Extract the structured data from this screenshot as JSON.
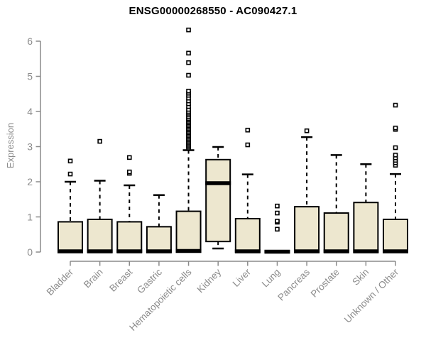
{
  "chart_data": {
    "type": "boxplot",
    "title": "ENSG00000268550 - AC090427.1",
    "ylabel": "Expression",
    "xlabel": "",
    "ylim": [
      0,
      6
    ],
    "yticks": [
      0,
      1,
      2,
      3,
      4,
      5,
      6
    ],
    "grid": false,
    "legend_position": "none",
    "style": {
      "box_fill": "#ede7cf",
      "box_stroke": "#000000",
      "median_color": "#000000",
      "whisker_color": "#000000",
      "outlier_stroke": "#000000",
      "axis_color": "#8b8b8b",
      "tick_label_color": "#8b8b8b",
      "title_color": "#000000",
      "background": "#ffffff"
    },
    "categories": [
      "Bladder",
      "Brain",
      "Breast",
      "Gastric",
      "Hematopoietic cells",
      "Kidney",
      "Liver",
      "Lung",
      "Pancreas",
      "Prostate",
      "Skin",
      "Unknown / Other"
    ],
    "series": [
      {
        "category": "Bladder",
        "whisker_low": 0,
        "q1": 0,
        "median": 0.02,
        "q3": 0.86,
        "whisker_high": 2.0,
        "outliers": [
          2.22,
          2.59
        ]
      },
      {
        "category": "Brain",
        "whisker_low": 0,
        "q1": 0,
        "median": 0.02,
        "q3": 0.93,
        "whisker_high": 2.03,
        "outliers": [
          3.15
        ]
      },
      {
        "category": "Breast",
        "whisker_low": 0,
        "q1": 0,
        "median": 0.02,
        "q3": 0.86,
        "whisker_high": 1.9,
        "outliers": [
          2.24,
          2.28,
          2.69
        ]
      },
      {
        "category": "Gastric",
        "whisker_low": 0,
        "q1": 0,
        "median": 0.02,
        "q3": 0.72,
        "whisker_high": 1.62,
        "outliers": []
      },
      {
        "category": "Hematopoietic cells",
        "whisker_low": 0,
        "q1": 0,
        "median": 0.03,
        "q3": 1.16,
        "whisker_high": 2.9,
        "outliers": [
          2.96,
          3.0,
          3.04,
          3.08,
          3.12,
          3.16,
          3.2,
          3.24,
          3.28,
          3.32,
          3.36,
          3.4,
          3.44,
          3.48,
          3.52,
          3.56,
          3.6,
          3.64,
          3.68,
          3.72,
          3.76,
          3.8,
          3.85,
          3.9,
          3.95,
          4.0,
          4.06,
          4.14,
          4.22,
          4.3,
          4.38,
          4.46,
          4.52,
          4.58,
          5.03,
          5.39,
          5.66,
          6.32
        ]
      },
      {
        "category": "Kidney",
        "whisker_low": 0.1,
        "q1": 0.3,
        "median": 1.96,
        "q3": 2.63,
        "whisker_high": 2.99,
        "outliers": []
      },
      {
        "category": "Liver",
        "whisker_low": 0,
        "q1": 0,
        "median": 0.02,
        "q3": 0.95,
        "whisker_high": 2.21,
        "outliers": [
          3.05,
          3.47
        ]
      },
      {
        "category": "Lung",
        "whisker_low": 0,
        "q1": 0,
        "median": 0.01,
        "q3": 0.02,
        "whisker_high": 0.02,
        "outliers": [
          0.65,
          0.85,
          0.88,
          1.11,
          1.31
        ]
      },
      {
        "category": "Pancreas",
        "whisker_low": 0,
        "q1": 0,
        "median": 0.02,
        "q3": 1.29,
        "whisker_high": 3.27,
        "outliers": [
          3.45
        ]
      },
      {
        "category": "Prostate",
        "whisker_low": 0,
        "q1": 0,
        "median": 0.02,
        "q3": 1.11,
        "whisker_high": 2.76,
        "outliers": []
      },
      {
        "category": "Skin",
        "whisker_low": 0,
        "q1": 0,
        "median": 0.02,
        "q3": 1.41,
        "whisker_high": 2.5,
        "outliers": []
      },
      {
        "category": "Unknown / Other",
        "whisker_low": 0,
        "q1": 0,
        "median": 0.02,
        "q3": 0.93,
        "whisker_high": 2.22,
        "outliers": [
          2.47,
          2.54,
          2.61,
          2.68,
          2.76,
          2.97,
          3.49,
          3.53,
          4.18
        ]
      }
    ]
  }
}
